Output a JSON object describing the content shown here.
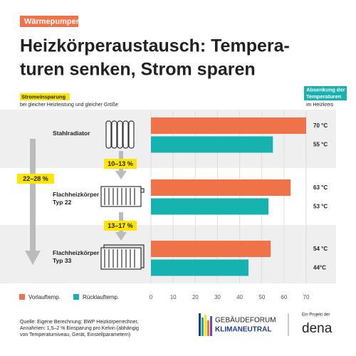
{
  "header": {
    "tag": "Wärmepumpen"
  },
  "chart_data": {
    "type": "hbar",
    "title": [
      "Heizkörperaustausch: Tempera-",
      "turen senken, Strom sparen"
    ],
    "left_label": "Stromeinsparung",
    "left_sublabel": "bei gleicher Heizleistung und gleicher Größe",
    "right_label": [
      "Absenkung der",
      "Temperaturen"
    ],
    "right_sublabel": "im Heizkreis",
    "categories": [
      "Stahlradiator",
      "Flachheizkörper Typ 22",
      "Flachheizkörper Typ 33"
    ],
    "series": [
      {
        "name": "Vorlauftemp.",
        "color": "#f07249",
        "values": [
          70,
          63,
          54
        ],
        "value_labels": [
          "70 °C",
          "63 °C",
          "54 °C"
        ]
      },
      {
        "name": "Rücklauftemp.",
        "color": "#15b2b0",
        "values": [
          55,
          53,
          44
        ],
        "value_labels": [
          "55 °C",
          "53 °C",
          "44°C"
        ]
      }
    ],
    "xlim": [
      0,
      70
    ],
    "xticks": [
      0,
      10,
      20,
      30,
      40,
      50,
      60,
      70
    ],
    "grid": true,
    "annotations": [
      "10–13 %",
      "13–17 %",
      "22–28 %"
    ]
  },
  "footer": {
    "source": [
      "Quelle: Eigene Berechnung: BWP Heizkörperrechner,",
      "Annahmen: 1,5–2 % Einsparung pro Kelvin (abhängig",
      "von Temperaturniveau, Gerät, Einstellparametern)"
    ],
    "logo_top": "GEBÄUDEFORUM",
    "logo_bottom": "KLIMANEUTRAL",
    "project": "Ein Projekt der",
    "dena": "dena"
  }
}
